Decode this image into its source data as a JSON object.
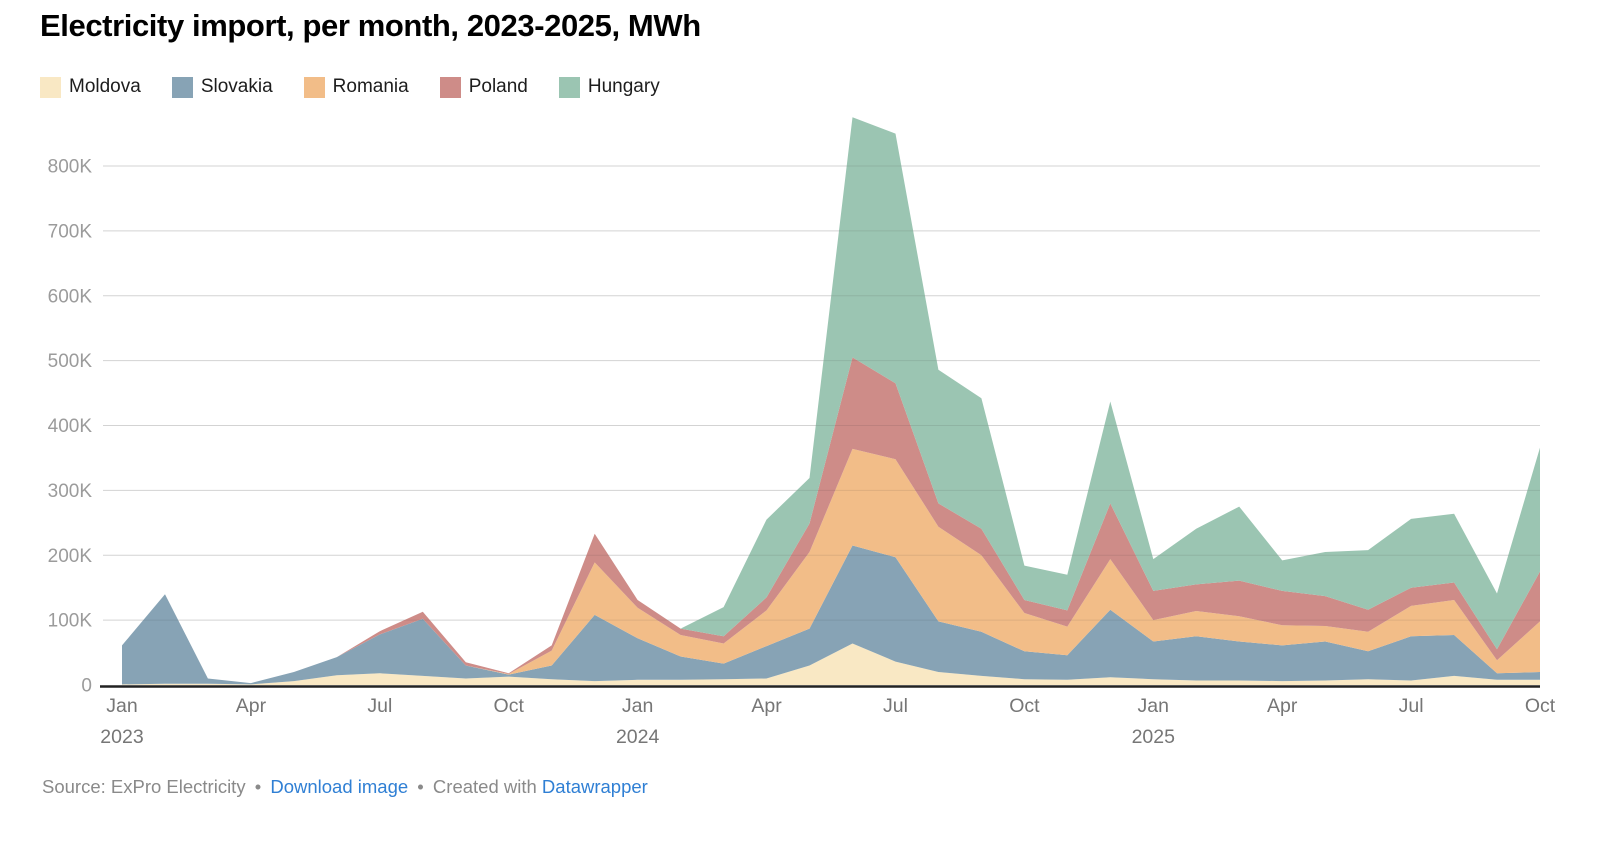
{
  "header": {
    "title": "Electricity import, per month, 2023-2025, MWh"
  },
  "footer": {
    "source_text": "Source: ExPro Electricity",
    "sep1": "•",
    "download_link": "Download image",
    "sep2": "•",
    "created_with": "Created with",
    "tool_link": "Datawrapper"
  },
  "chart_data": {
    "type": "area",
    "stacked": true,
    "title": "Electricity import, per month, 2023-2025, MWh",
    "unit": "MWh",
    "legend_position": "top",
    "grid": "horizontal",
    "x": [
      "2023-01",
      "2023-02",
      "2023-03",
      "2023-04",
      "2023-05",
      "2023-06",
      "2023-07",
      "2023-08",
      "2023-09",
      "2023-10",
      "2023-11",
      "2023-12",
      "2024-01",
      "2024-02",
      "2024-03",
      "2024-04",
      "2024-05",
      "2024-06",
      "2024-07",
      "2024-08",
      "2024-09",
      "2024-10",
      "2024-11",
      "2024-12",
      "2025-01",
      "2025-02",
      "2025-03",
      "2025-04",
      "2025-05",
      "2025-06",
      "2025-07",
      "2025-08",
      "2025-09",
      "2025-10"
    ],
    "series": [
      {
        "name": "Moldova",
        "color": "#F9E8C4",
        "values": [
          1000,
          2000,
          2000,
          1000,
          6000,
          15000,
          18000,
          14000,
          10000,
          13000,
          9000,
          6000,
          8000,
          8000,
          9000,
          10000,
          30000,
          64000,
          36000,
          20000,
          14000,
          9000,
          8000,
          12000,
          9000,
          7000,
          7000,
          6000,
          7000,
          9000,
          7000,
          14000,
          8000,
          8000
        ]
      },
      {
        "name": "Slovakia",
        "color": "#87A3B5",
        "values": [
          60000,
          138000,
          8000,
          2000,
          14000,
          28000,
          60000,
          88000,
          20000,
          3000,
          21000,
          102000,
          64000,
          36000,
          24000,
          50000,
          57000,
          151000,
          161000,
          78000,
          68000,
          43000,
          38000,
          104000,
          58000,
          68000,
          60000,
          55000,
          60000,
          43000,
          68000,
          63000,
          10000,
          12000
        ]
      },
      {
        "name": "Romania",
        "color": "#F2BD88",
        "values": [
          0,
          0,
          0,
          0,
          0,
          0,
          0,
          0,
          0,
          1000,
          23000,
          81000,
          47000,
          33000,
          31000,
          55000,
          118000,
          149000,
          151000,
          146000,
          118000,
          59000,
          44000,
          78000,
          33000,
          39000,
          39000,
          31000,
          24000,
          30000,
          47000,
          54000,
          20000,
          78000
        ]
      },
      {
        "name": "Poland",
        "color": "#CE8C88",
        "values": [
          0,
          0,
          0,
          0,
          0,
          0,
          5000,
          11000,
          5000,
          1000,
          8000,
          44000,
          12000,
          10000,
          11000,
          20000,
          44000,
          141000,
          117000,
          36000,
          41000,
          20000,
          25000,
          86000,
          45000,
          41000,
          55000,
          53000,
          46000,
          34000,
          28000,
          27000,
          17000,
          77000
        ]
      },
      {
        "name": "Hungary",
        "color": "#9BC5B2",
        "values": [
          0,
          0,
          0,
          0,
          0,
          0,
          0,
          0,
          0,
          0,
          0,
          0,
          0,
          0,
          45000,
          120000,
          70000,
          370000,
          385000,
          206000,
          201000,
          53000,
          55000,
          157000,
          49000,
          86000,
          114000,
          47000,
          68000,
          92000,
          106000,
          106000,
          86000,
          191000
        ]
      }
    ],
    "y_axis": {
      "min": 0,
      "max": 800000,
      "tick_step": 100000,
      "tick_labels": [
        "0",
        "100K",
        "200K",
        "300K",
        "400K",
        "500K",
        "600K",
        "700K",
        "800K"
      ]
    },
    "x_ticks": [
      {
        "i": 0,
        "label": "Jan",
        "year": "2023"
      },
      {
        "i": 3,
        "label": "Apr"
      },
      {
        "i": 6,
        "label": "Jul"
      },
      {
        "i": 9,
        "label": "Oct"
      },
      {
        "i": 12,
        "label": "Jan",
        "year": "2024"
      },
      {
        "i": 15,
        "label": "Apr"
      },
      {
        "i": 18,
        "label": "Jul"
      },
      {
        "i": 21,
        "label": "Oct"
      },
      {
        "i": 24,
        "label": "Jan",
        "year": "2025"
      },
      {
        "i": 27,
        "label": "Apr"
      },
      {
        "i": 30,
        "label": "Jul"
      },
      {
        "i": 33,
        "label": "Oct"
      }
    ]
  }
}
